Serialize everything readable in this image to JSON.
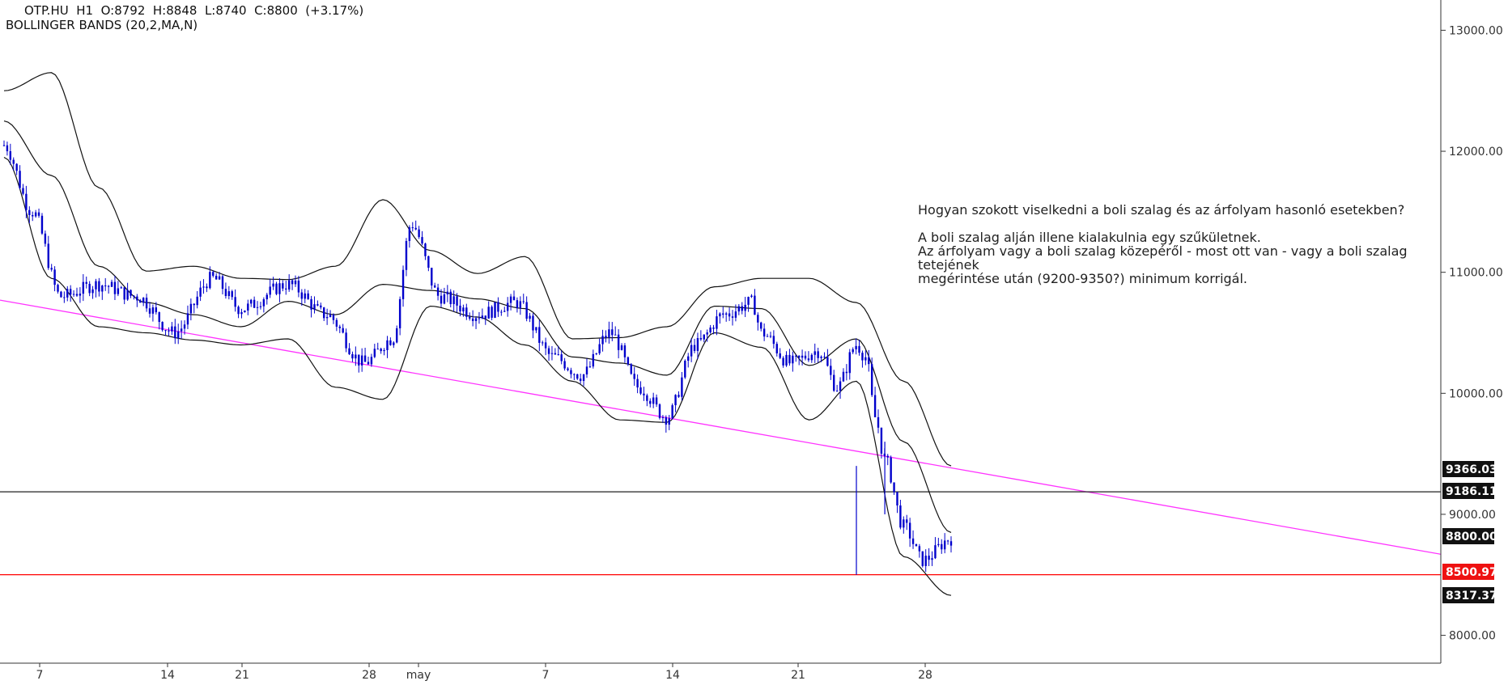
{
  "header": {
    "line1": "OTP.HU  H1  O:8792  H:8848  L:8740  C:8800  (+3.17%)",
    "line2": "BOLLINGER BANDS (20,2,MA,N)"
  },
  "annotation": {
    "question": "Hogyan szokott viselkedni a boli szalag és az árfolyam hasonló esetekben?",
    "line1": "A boli szalag alján illene kialakulnia egy szűkületnek.",
    "line2": "Az árfolyam vagy a boli szalag közepéről - most ott van - vagy a boli szalag tetejének",
    "line3": "megérintése után (9200-9350?) minimum korrigál."
  },
  "colors": {
    "candle": "#0000cc",
    "band": "#111111",
    "trendline": "#ff33ff",
    "support": "#ff0000",
    "level": "#222222",
    "badge_dark": "#111111",
    "badge_red": "#ee1111"
  },
  "chart_data": {
    "type": "candlestick",
    "symbol": "OTP.HU",
    "timeframe": "H1",
    "ohlc_last": {
      "open": 8792,
      "high": 8848,
      "low": 8740,
      "close": 8800,
      "change_pct": 3.17
    },
    "indicator": "BOLLINGER BANDS (20,2,MA,N)",
    "ylim": [
      7770,
      13250
    ],
    "y_ticks": [
      "13000.00",
      "12000.00",
      "11000.00",
      "10000.00",
      "9000.00",
      "8000.00"
    ],
    "x_tick_labels": [
      "7",
      "14",
      "21",
      "28",
      "may",
      "7",
      "14",
      "21",
      "28"
    ],
    "price_badges": [
      "9366.03",
      "9186.11",
      "8800.00",
      "8500.97",
      "8317.37"
    ],
    "horizontal_levels": [
      9186.11,
      8500.97
    ],
    "trendline": {
      "from": [
        0,
        10770
      ],
      "to": [
        1,
        8670
      ]
    },
    "bands": {
      "x": [
        0,
        0.05,
        0.1,
        0.15,
        0.2,
        0.25,
        0.3,
        0.35,
        0.4,
        0.45,
        0.5,
        0.55,
        0.6,
        0.65,
        0.7,
        0.75,
        0.8,
        0.85,
        0.9,
        0.95,
        1.0
      ],
      "upper": [
        12500,
        12650,
        11700,
        11010,
        11050,
        10950,
        10940,
        11050,
        11600,
        11180,
        10990,
        11130,
        10450,
        10460,
        10550,
        10880,
        10950,
        10950,
        10750,
        10100,
        9400
      ],
      "middle": [
        12250,
        11800,
        11050,
        10750,
        10650,
        10550,
        10760,
        10650,
        10900,
        10850,
        10780,
        10700,
        10300,
        10250,
        10150,
        10720,
        10700,
        10230,
        10450,
        9600,
        8850
      ],
      "lower": [
        11950,
        10950,
        10550,
        10500,
        10440,
        10400,
        10450,
        10050,
        9950,
        10720,
        10630,
        10400,
        10100,
        9780,
        9760,
        10500,
        10380,
        9780,
        10100,
        8650,
        8330
      ]
    },
    "price_path": {
      "x": [
        0,
        0.03,
        0.06,
        0.1,
        0.14,
        0.18,
        0.22,
        0.25,
        0.3,
        0.34,
        0.38,
        0.41,
        0.43,
        0.46,
        0.5,
        0.54,
        0.58,
        0.61,
        0.64,
        0.67,
        0.7,
        0.73,
        0.76,
        0.79,
        0.8,
        0.83,
        0.86,
        0.88,
        0.9,
        0.91,
        0.92,
        0.93,
        0.95,
        0.97,
        1.0
      ],
      "close": [
        12050,
        11500,
        10800,
        10900,
        10800,
        10500,
        10950,
        10700,
        10900,
        10650,
        10250,
        10450,
        11400,
        10800,
        10650,
        10750,
        10300,
        10150,
        10500,
        10050,
        9800,
        10400,
        10650,
        10750,
        10500,
        10250,
        10350,
        10050,
        10400,
        10300,
        9800,
        9450,
        8900,
        8620,
        8800
      ]
    }
  }
}
